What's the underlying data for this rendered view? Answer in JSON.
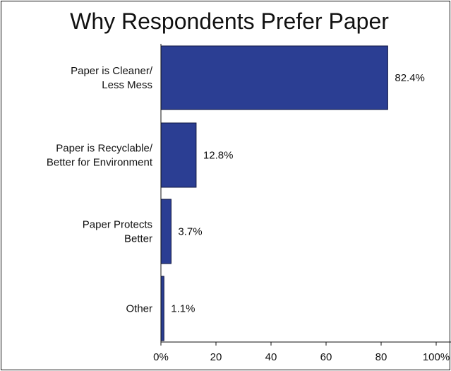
{
  "chart_data": {
    "type": "bar",
    "orientation": "horizontal",
    "title": "Why Respondents Prefer Paper",
    "categories": [
      [
        "Paper is Cleaner/",
        "Less Mess"
      ],
      [
        "Paper is Recyclable/",
        "Better for Environment"
      ],
      [
        "Paper Protects",
        "Better"
      ],
      [
        "Other"
      ]
    ],
    "values": [
      82.4,
      12.8,
      3.7,
      1.1
    ],
    "value_labels": [
      "82.4%",
      "12.8%",
      "3.7%",
      "1.1%"
    ],
    "xlim": [
      0,
      100
    ],
    "x_ticks": [
      0,
      20,
      40,
      60,
      80,
      100
    ],
    "x_tick_labels": [
      "0%",
      "20",
      "40",
      "60",
      "80",
      "100%"
    ],
    "grid": false,
    "colors": {
      "bar_fill": "#2B3E93",
      "bar_stroke": "#0E1440",
      "text": "#111111"
    }
  }
}
